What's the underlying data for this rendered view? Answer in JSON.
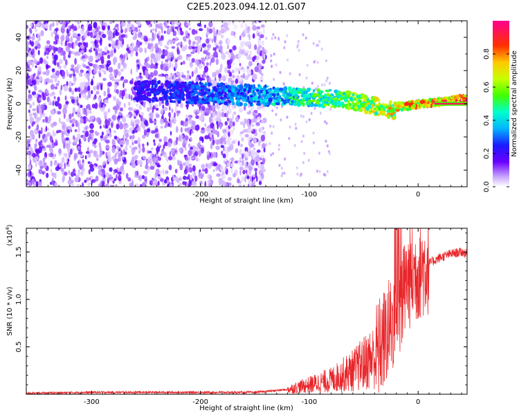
{
  "title": "C2E5.2023.094.12.01.G07",
  "colors": {
    "snr_line": "#e8262a",
    "background": "#ffffff",
    "axes": "#000000"
  },
  "chart_data": [
    {
      "type": "heatmap",
      "xlabel": "Height of straight line (km)",
      "ylabel": "Frequency (Hz)",
      "xlim": [
        -360,
        45
      ],
      "ylim": [
        -50,
        50
      ],
      "x_ticks": [
        "-300",
        "-200",
        "-100",
        "0"
      ],
      "y_ticks": [
        "-40",
        "-20",
        "0",
        "20",
        "40"
      ],
      "colorbar": {
        "label": "Normalized spectral amplitude",
        "range": [
          0,
          1
        ],
        "ticks": [
          "0.0",
          "0.2",
          "0.4",
          "0.6",
          "0.8"
        ]
      },
      "features": [
        {
          "description": "broadband noise",
          "x_range": [
            -360,
            -140
          ],
          "freq_range": [
            -50,
            50
          ],
          "amplitude": 0.1
        },
        {
          "description": "signal band",
          "x_range": [
            -260,
            45
          ],
          "center_freq": [
            8,
            0
          ],
          "amplitude_trend": [
            0.25,
            1.0
          ]
        }
      ]
    },
    {
      "type": "line",
      "xlabel": "Height of straight line (km)",
      "ylabel": "SNR (10 * v/v)",
      "y_multiplier": "(x10",
      "y_multiplier_exp": "4",
      "y_multiplier_close": ")",
      "xlim": [
        -360,
        45
      ],
      "ylim": [
        0,
        1.75
      ],
      "x_ticks": [
        "-300",
        "-200",
        "-100",
        "0"
      ],
      "y_ticks": [
        "0.5",
        "1.0",
        "1.5"
      ],
      "series": [
        {
          "x": [
            -360,
            -300,
            -250,
            -200,
            -150,
            -120,
            -100,
            -80,
            -60,
            -40,
            -30,
            -20,
            -15,
            -10,
            0,
            10,
            20,
            30,
            40,
            45
          ],
          "y": [
            0.01,
            0.02,
            0.02,
            0.02,
            0.02,
            0.05,
            0.1,
            0.15,
            0.25,
            0.4,
            0.6,
            0.85,
            1.0,
            1.2,
            1.3,
            1.38,
            1.44,
            1.48,
            1.5,
            1.48
          ]
        }
      ]
    }
  ]
}
